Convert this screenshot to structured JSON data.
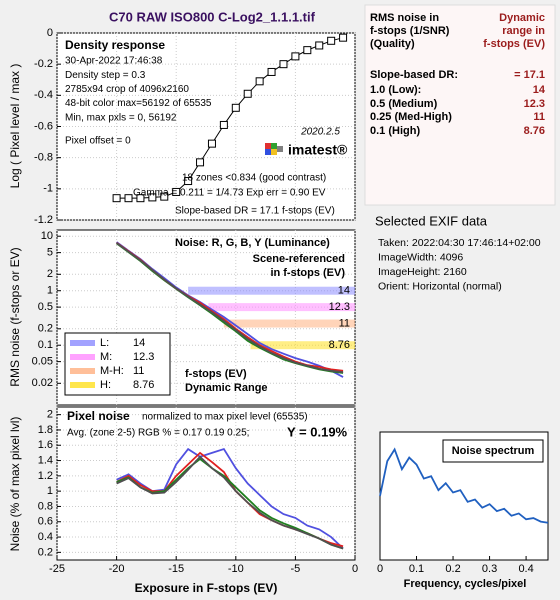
{
  "title": "C70 RAW ISO800 C-Log2_1.1.1.tif",
  "chart_data": [
    {
      "type": "line",
      "title": "Density response",
      "annotations": [
        "30-Apr-2022 17:46:38",
        "Density step = 0.3",
        "2785x94 crop of 4096x2160",
        "48-bit color  max=56192 of 65535",
        "Min, max pxls = 0, 56192"
      ],
      "offset_note": "Pixel offset = 0",
      "version": "2020.2.5",
      "logo": "imatest®",
      "zones_note": "18 zones <0.834 (good contrast)",
      "gamma_note": "Gamma = 0.211 = 1/4.73  Exp err = 0.90 EV",
      "dr_note": "Slope-based DR = 17.1 f-stops (EV)",
      "ylabel": "Log ( Pixel level / max )",
      "x": [
        -20,
        -19,
        -18,
        -17,
        -16,
        -15,
        -14,
        -13,
        -12,
        -11,
        -10,
        -9,
        -8,
        -7,
        -6,
        -5,
        -4,
        -3,
        -2,
        -1
      ],
      "values": [
        -1.06,
        -1.06,
        -1.06,
        -1.055,
        -1.05,
        -1.02,
        -0.95,
        -0.83,
        -0.71,
        -0.59,
        -0.48,
        -0.39,
        -0.31,
        -0.25,
        -0.2,
        -0.15,
        -0.11,
        -0.08,
        -0.05,
        -0.03
      ],
      "color": "#000000",
      "markers": "square",
      "xlim": [
        -25,
        0
      ],
      "ylim": [
        -1.2,
        0
      ],
      "yticks": [
        0,
        -0.2,
        -0.4,
        -0.6,
        -0.8,
        -1,
        -1.2
      ],
      "grid": true
    },
    {
      "type": "line",
      "title": "Noise: R, G, B, Y (Luminance)",
      "subtitle": [
        "Scene-referenced",
        "in f-stops (EV)"
      ],
      "dr_label": [
        "f-stops (EV)",
        "Dynamic Range"
      ],
      "ylabel": "RMS noise (f-stops or EV)",
      "log_y": true,
      "x": [
        -20,
        -19,
        -18,
        -17,
        -16,
        -15,
        -14,
        -13,
        -12,
        -11,
        -10,
        -9,
        -8,
        -7,
        -6,
        -5,
        -4,
        -3,
        -2,
        -1
      ],
      "series": [
        {
          "color": "#5050e0",
          "values": [
            7.8,
            5.4,
            3.8,
            2.5,
            1.7,
            1.15,
            0.82,
            0.62,
            0.45,
            0.33,
            0.23,
            0.16,
            0.11,
            0.085,
            0.07,
            0.058,
            0.05,
            0.042,
            0.034,
            0.026
          ]
        },
        {
          "color": "#208020",
          "values": [
            7.4,
            5.1,
            3.5,
            2.3,
            1.55,
            1.08,
            0.76,
            0.54,
            0.38,
            0.26,
            0.18,
            0.12,
            0.09,
            0.07,
            0.055,
            0.047,
            0.041,
            0.036,
            0.033,
            0.031
          ]
        },
        {
          "color": "#e02020",
          "values": [
            7.6,
            5.3,
            3.7,
            2.4,
            1.6,
            1.1,
            0.8,
            0.6,
            0.42,
            0.3,
            0.2,
            0.14,
            0.1,
            0.078,
            0.062,
            0.05,
            0.043,
            0.04,
            0.036,
            0.034
          ]
        },
        {
          "color": "#505050",
          "values": [
            7.5,
            5.2,
            3.6,
            2.4,
            1.6,
            1.1,
            0.78,
            0.56,
            0.4,
            0.28,
            0.19,
            0.13,
            0.095,
            0.072,
            0.058,
            0.048,
            0.042,
            0.037,
            0.034,
            0.032
          ]
        }
      ],
      "dynamic_range": {
        "thresholds": [
          1,
          0.5,
          0.25,
          0.1
        ],
        "values": [
          14,
          12.3,
          11,
          8.76
        ],
        "legend_labels": [
          "L:",
          "M:",
          "M-H:",
          "H:"
        ],
        "colors": [
          "#8c8cff",
          "#ff8cff",
          "#ffb080",
          "#ffe020"
        ]
      },
      "xlim": [
        -25,
        0
      ],
      "ylim": [
        0.008,
        13
      ],
      "yticks": [
        10,
        5,
        2,
        1,
        0.5,
        0.2,
        0.1,
        0.05,
        0.02
      ],
      "grid": true
    },
    {
      "type": "line",
      "title": "Pixel noise",
      "subtitle": "normalized to max pixel level (65535)",
      "note": "Avg. (zone 2-5) RGB % = 0.17  0.19  0.25;",
      "note_bold": "Y = 0.19%",
      "xlabel": "Exposure in F-stops (EV)",
      "ylabel": "Noise (% of max pixel lvl)",
      "x": [
        -20,
        -19,
        -18,
        -17,
        -16,
        -15,
        -14,
        -13,
        -12,
        -11,
        -10,
        -9,
        -8,
        -7,
        -6,
        -5,
        -4,
        -3,
        -2,
        -1
      ],
      "series": [
        {
          "color": "#5050e0",
          "values": [
            1.15,
            1.22,
            1.1,
            1.0,
            1.02,
            1.35,
            1.55,
            1.45,
            1.5,
            1.55,
            1.3,
            1.1,
            0.95,
            0.8,
            0.7,
            0.65,
            0.55,
            0.5,
            0.4,
            0.25
          ]
        },
        {
          "color": "#e02020",
          "values": [
            1.12,
            1.2,
            1.08,
            1.0,
            1.0,
            1.2,
            1.35,
            1.5,
            1.38,
            1.25,
            1.0,
            0.85,
            0.7,
            0.62,
            0.55,
            0.5,
            0.45,
            0.38,
            0.32,
            0.28
          ]
        },
        {
          "color": "#208020",
          "values": [
            1.12,
            1.18,
            1.05,
            0.98,
            1.0,
            1.15,
            1.3,
            1.42,
            1.3,
            1.2,
            1.05,
            0.9,
            0.75,
            0.65,
            0.58,
            0.52,
            0.45,
            0.38,
            0.3,
            0.25
          ]
        },
        {
          "color": "#505050",
          "values": [
            1.1,
            1.17,
            1.05,
            0.97,
            0.98,
            1.12,
            1.28,
            1.45,
            1.3,
            1.18,
            1.0,
            0.85,
            0.72,
            0.62,
            0.55,
            0.5,
            0.44,
            0.38,
            0.3,
            0.25
          ]
        }
      ],
      "xlim": [
        -25,
        0
      ],
      "xticks": [
        -25,
        -20,
        -15,
        -10,
        -5,
        0
      ],
      "ylim": [
        0.1,
        2.1
      ],
      "yticks": [
        2,
        1.8,
        1.6,
        1.4,
        1.2,
        1,
        0.8,
        0.6,
        0.4,
        0.2
      ],
      "grid": true
    },
    {
      "type": "line",
      "title": "Noise spectrum",
      "xlabel": "Frequency, cycles/pixel",
      "x": [
        0,
        0.02,
        0.04,
        0.06,
        0.08,
        0.1,
        0.12,
        0.14,
        0.16,
        0.18,
        0.2,
        0.22,
        0.24,
        0.26,
        0.28,
        0.3,
        0.32,
        0.34,
        0.36,
        0.38,
        0.4,
        0.42,
        0.44,
        0.46
      ],
      "values": [
        0.55,
        0.85,
        0.95,
        0.78,
        0.88,
        0.82,
        0.7,
        0.72,
        0.6,
        0.66,
        0.58,
        0.6,
        0.5,
        0.52,
        0.45,
        0.48,
        0.42,
        0.44,
        0.38,
        0.4,
        0.35,
        0.36,
        0.33,
        0.32
      ],
      "color": "#2060c0",
      "xlim": [
        0,
        0.46
      ],
      "xticks": [
        0,
        0.1,
        0.2,
        0.3,
        0.4
      ],
      "ylim": [
        0,
        1.1
      ]
    }
  ],
  "dr_table": {
    "header_left": [
      "RMS noise in",
      "f-stops (1/SNR)",
      "(Quality)"
    ],
    "header_right": [
      "Dynamic",
      "range in",
      "f-stops (EV)"
    ],
    "rows": [
      [
        "Slope-based DR:",
        "= 17.1"
      ],
      [
        "1.0  (Low):",
        "14"
      ],
      [
        "0.5  (Medium)",
        "12.3"
      ],
      [
        "0.25 (Med-High)",
        "11"
      ],
      [
        "0.1  (High)",
        "8.76"
      ]
    ]
  },
  "exif": {
    "title": "Selected EXIF data",
    "lines": [
      "Taken: 2022:04:30 17:46:14+02:00",
      "ImageWidth:  4096",
      "ImageHeight:  2160",
      "Orient: Horizontal (normal)"
    ]
  }
}
